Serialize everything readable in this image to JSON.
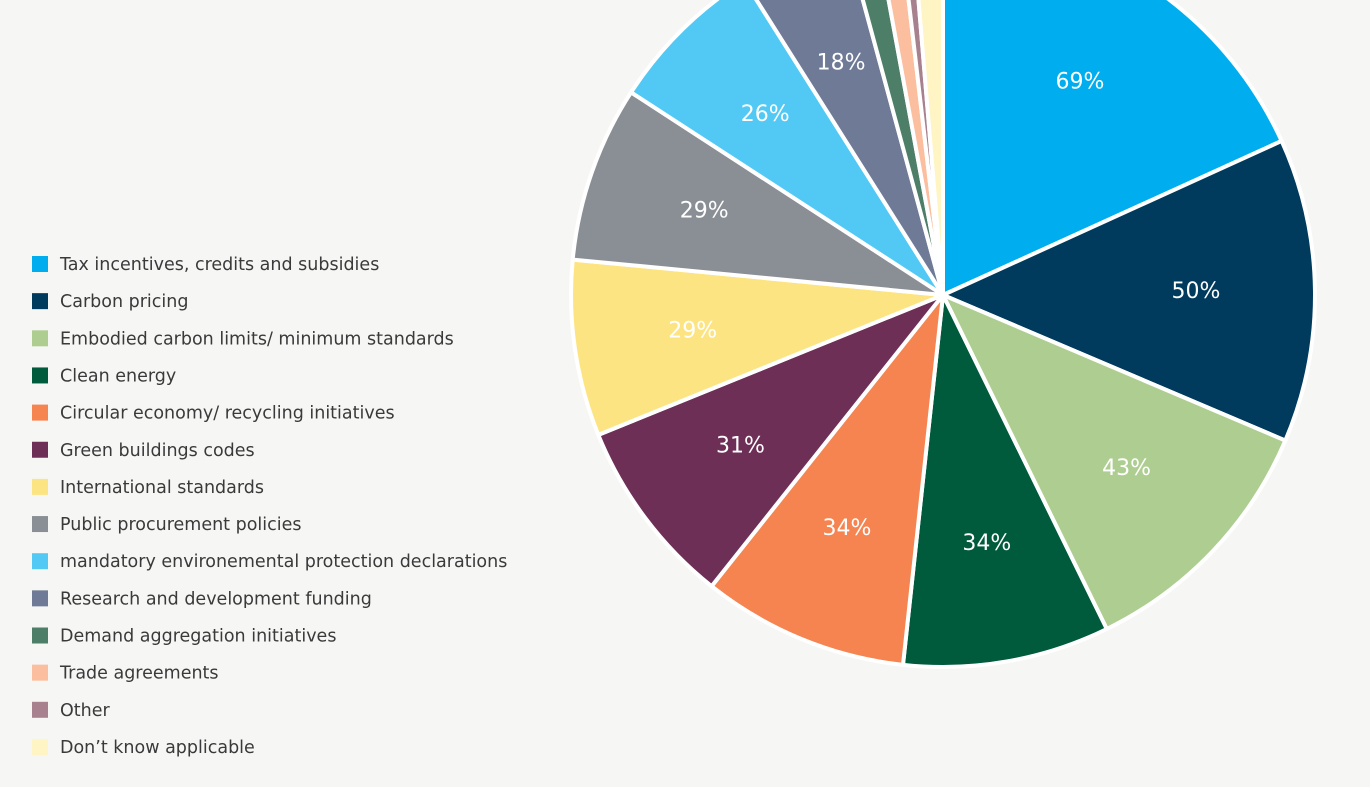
{
  "chart_data": {
    "type": "pie",
    "categories": [
      "Tax incentives, credits and subsidies",
      "Carbon pricing",
      "Embodied carbon limits/ minimum standards",
      "Clean energy",
      "Circular economy/ recycling initiatives",
      "Green buildings codes",
      "International standards",
      "Public procurement policies",
      "mandatory environemental protection declarations",
      "Research and development funding",
      "Demand aggregation initiatives",
      "Trade agreements",
      "Other",
      "Don’t know applicable"
    ],
    "values": [
      69,
      50,
      43,
      34,
      34,
      31,
      29,
      29,
      26,
      18,
      5,
      4,
      2,
      5
    ],
    "value_labels": [
      "69%",
      "50%",
      "43%",
      "34%",
      "34%",
      "31%",
      "29%",
      "29%",
      "26%",
      "18%",
      null,
      null,
      null,
      null
    ],
    "colors": [
      "#00aeef",
      "#003a5d",
      "#aecd91",
      "#005a3c",
      "#f58451",
      "#6e2f57",
      "#fde482",
      "#8a8f96",
      "#52c9f5",
      "#6e7a96",
      "#4d7f68",
      "#fbbf9f",
      "#a8818f",
      "#fff4c4"
    ],
    "legend": "left"
  }
}
